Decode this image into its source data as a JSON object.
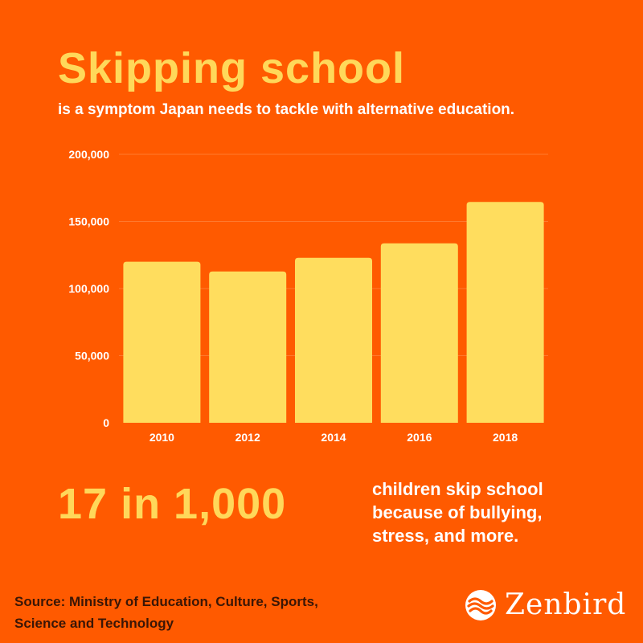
{
  "header": {
    "title": "Skipping school",
    "subtitle": "is a symptom Japan needs to tackle with alternative education."
  },
  "chart_data": {
    "type": "bar",
    "categories": [
      "2010",
      "2012",
      "2014",
      "2016",
      "2018"
    ],
    "values": [
      120000,
      112700,
      122900,
      133700,
      164500
    ],
    "yticks": [
      0,
      50000,
      100000,
      150000,
      200000
    ],
    "ytick_labels": [
      "0",
      "50,000",
      "100,000",
      "150,000",
      "200,000"
    ],
    "ylim": [
      0,
      200000
    ],
    "grid": true,
    "bar_color": "#FFDD5E",
    "grid_color": "#FF7A2E"
  },
  "stat": {
    "value": "17 in 1,000",
    "lines": [
      "children skip school",
      "because of bullying,",
      "stress, and more."
    ]
  },
  "source": {
    "line1": "Source: Ministry of Education, Culture, Sports,",
    "line2": "Science and Technology"
  },
  "brand": {
    "name": "Zenbird",
    "logo_icon": "zenbird-wave-icon"
  },
  "colors": {
    "background": "#FF5A00",
    "accent": "#FFD85A",
    "text": "#FFFFFF",
    "source_text": "#3A1606"
  }
}
